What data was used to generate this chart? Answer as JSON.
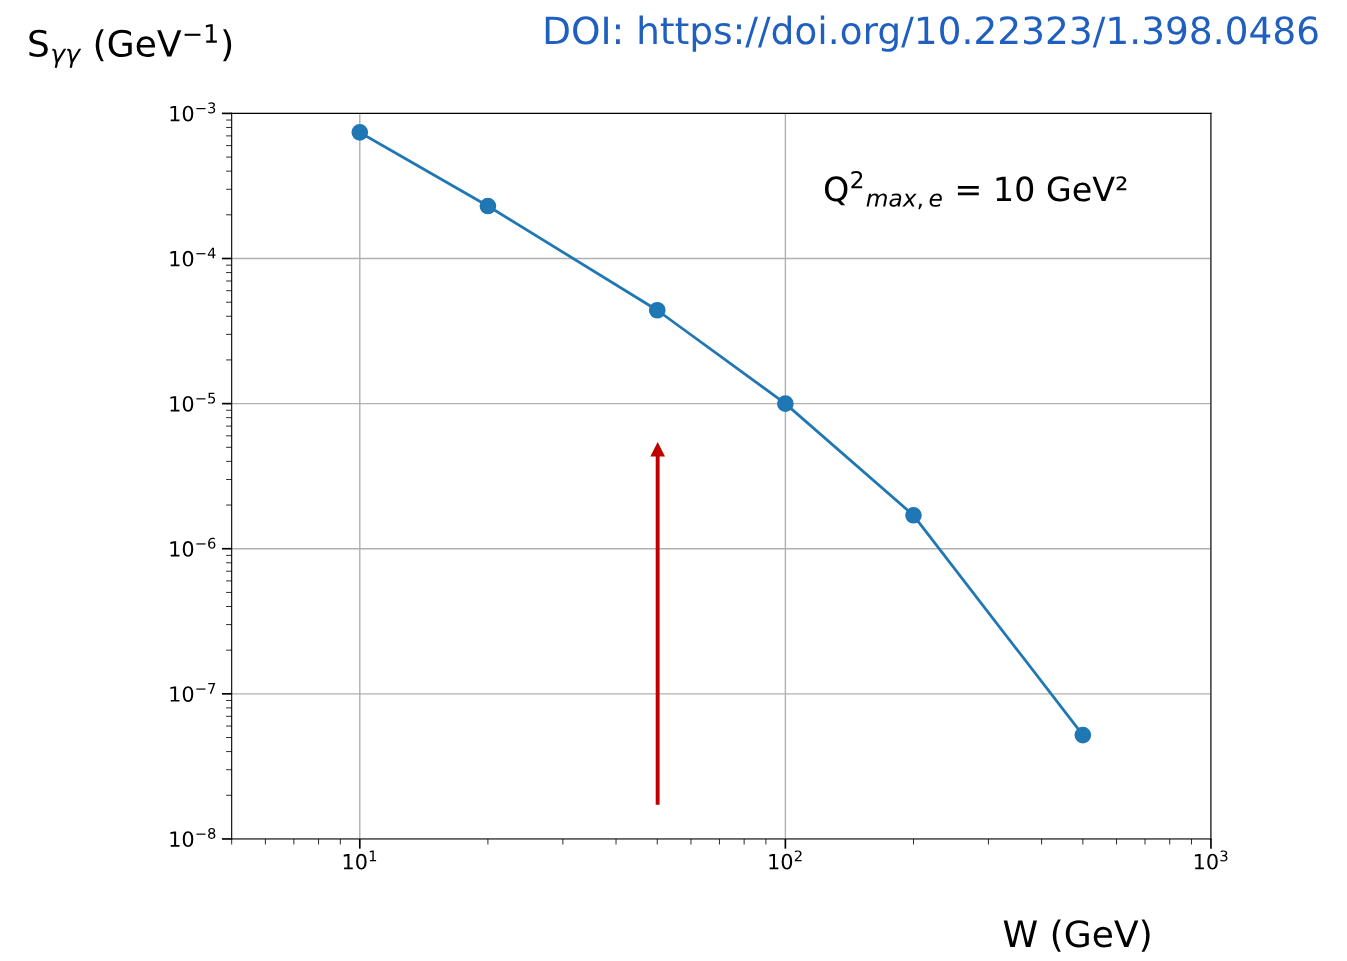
{
  "chart_data": {
    "type": "line",
    "title": "DOI: https://doi.org/10.22323/1.398.0486",
    "xlabel": "W (GeV)",
    "ylabel": "S$_{γγ}$ (GeV$^{−1}$)",
    "annotations": [
      "Q$^{2}$$_{max,e}$ = 10 GeV²"
    ],
    "x": [
      10,
      20,
      50,
      100,
      200,
      500
    ],
    "series": [
      {
        "color": "#1f77b4",
        "values": [
          0.00074,
          0.00023,
          4.4e-05,
          1e-05,
          1.7e-06,
          5.2e-08
        ]
      }
    ],
    "log": "xy",
    "xlim": [
      5,
      1000
    ],
    "xticks": [
      {
        "value": 10,
        "label": "10$^{1}$"
      },
      {
        "value": 100,
        "label": "10$^{2}$"
      },
      {
        "value": 1000,
        "label": "10$^{3}$"
      }
    ],
    "ylim": [
      1e-08,
      0.001
    ],
    "yticks": [
      {
        "value": 1e-08,
        "label": "10$^{−8}$"
      },
      {
        "value": 1e-07,
        "label": "10$^{−7}$"
      },
      {
        "value": 1e-06,
        "label": "10$^{−6}$"
      },
      {
        "value": 1e-05,
        "label": "10$^{−5}$"
      },
      {
        "value": 0.0001,
        "label": "10$^{−4}$"
      },
      {
        "value": 0.001,
        "label": "10$^{−3}$"
      }
    ],
    "grid": true,
    "marker": "circle",
    "line_style": "solid"
  }
}
